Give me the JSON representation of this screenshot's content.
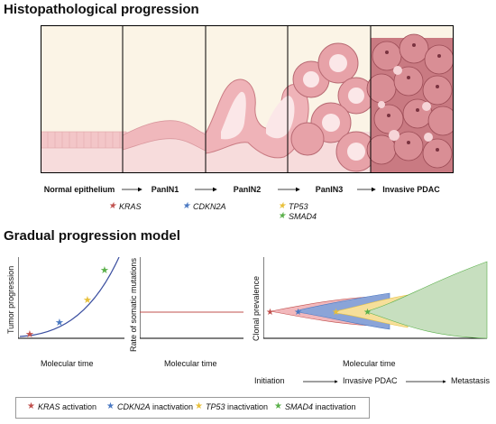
{
  "titles": {
    "histo": "Histopathological progression",
    "gradual": "Gradual progression model"
  },
  "stages": [
    "Normal epithelium",
    "PanIN1",
    "PanIN2",
    "PanIN3",
    "Invasive PDAC"
  ],
  "mutation_markers": [
    {
      "gene": "KRAS",
      "color": "#c0504d"
    },
    {
      "gene": "CDKN2A",
      "color": "#4a78c2"
    },
    {
      "gene": "TP53",
      "color": "#e8c03a"
    },
    {
      "gene": "SMAD4",
      "color": "#5ab04a"
    }
  ],
  "panels": {
    "tumor": {
      "ylabel": "Tumor progression",
      "xlabel": "Molecular time"
    },
    "rate": {
      "ylabel": "Rate of somatic mutations",
      "xlabel": "Molecular time"
    },
    "clonal": {
      "ylabel": "Clonal prevalence",
      "xlabel": "Molecular time"
    }
  },
  "timeline": [
    "Initiation",
    "Invasive PDAC",
    "Metastasis"
  ],
  "legend": [
    {
      "gene": "KRAS",
      "suffix": " activation",
      "color": "#c0504d"
    },
    {
      "gene": "CDKN2A",
      "suffix": " inactivation",
      "color": "#4a78c2"
    },
    {
      "gene": "TP53",
      "suffix": " inactivation",
      "color": "#e8c03a"
    },
    {
      "gene": "SMAD4",
      "suffix": " inactivation",
      "color": "#5ab04a"
    }
  ],
  "colors": {
    "tissue_light": "#f3c6c8",
    "tissue_mid": "#e0959b",
    "tissue_dark": "#b45a64",
    "panel_bg": "#fbf4e6",
    "rate_line": "#c0504d",
    "curve": "#3b4fa0",
    "clone_kras": "#f2b8bc",
    "clone_cdkn2a": "#8aa4d8",
    "clone_tp53": "#f6df9a",
    "clone_smad4": "#c7dfbf"
  }
}
